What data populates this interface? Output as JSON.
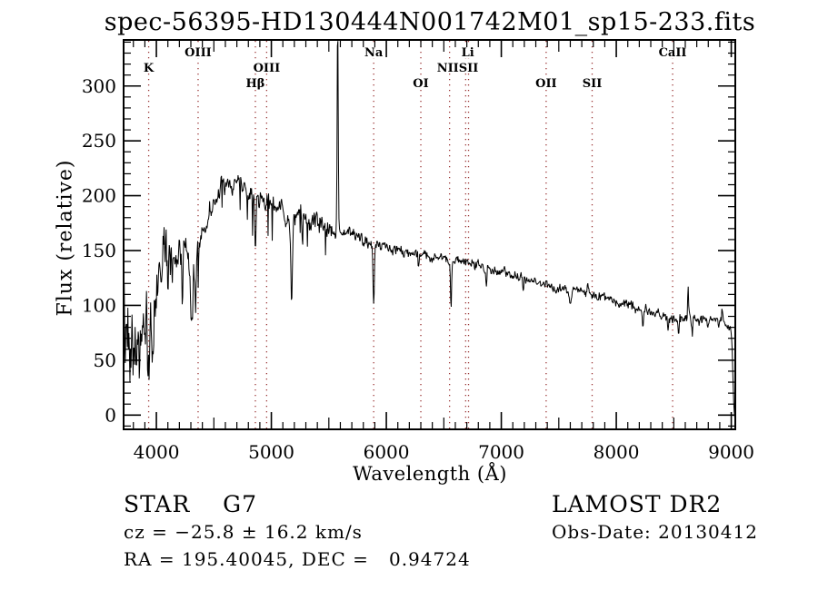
{
  "title": "spec-56395-HD130444N001742M01_sp15-233.fits",
  "annotations": {
    "class_label": "STAR    G7",
    "survey": "LAMOST DR2",
    "cz": "cz = −25.8 ± 16.2 km/s",
    "obs_date": "Obs-Date: 20130412",
    "ra_dec": "RA = 195.40045, DEC =   0.94724"
  },
  "chart_data": {
    "type": "line",
    "title": "spec-56395-HD130444N001742M01_sp15-233.fits",
    "xlabel": "Wavelength (Å)",
    "ylabel": "Flux (relative)",
    "xlim": [
      3715,
      9035
    ],
    "ylim": [
      -13,
      342
    ],
    "xticks_major": [
      4000,
      5000,
      6000,
      7000,
      8000,
      9000
    ],
    "xtick_medium_step": 500,
    "xtick_minor_step": 100,
    "yticks_major": [
      0,
      50,
      100,
      150,
      200,
      250,
      300
    ],
    "ytick_minor_step": 10,
    "grid": false,
    "line_color": "#000000",
    "marker_color": "#993333",
    "line_markers": [
      3933,
      4363,
      4861,
      4959,
      5890,
      6300,
      6550,
      6690,
      6715,
      7390,
      7790,
      8490
    ],
    "line_labels": [
      {
        "text": "K",
        "wavelength": 3933,
        "row": 1
      },
      {
        "text": "OIII",
        "wavelength": 4363,
        "row": 0
      },
      {
        "text": "Hβ",
        "wavelength": 4861,
        "row": 2
      },
      {
        "text": "OIII",
        "wavelength": 4959,
        "row": 1
      },
      {
        "text": "Na",
        "wavelength": 5890,
        "row": 0
      },
      {
        "text": "OI",
        "wavelength": 6300,
        "row": 2
      },
      {
        "text": "NIISII",
        "wavelength": 6620,
        "row": 1
      },
      {
        "text": "Li",
        "wavelength": 6708,
        "row": 0
      },
      {
        "text": "OII",
        "wavelength": 7390,
        "row": 2
      },
      {
        "text": "SII",
        "wavelength": 7790,
        "row": 2
      },
      {
        "text": "CaII",
        "wavelength": 8490,
        "row": 0
      }
    ],
    "seed": 42,
    "sample_step": 4.5,
    "continuum": [
      [
        3715,
        100
      ],
      [
        3730,
        55
      ],
      [
        3760,
        95
      ],
      [
        3800,
        70
      ],
      [
        3840,
        60
      ],
      [
        3880,
        70
      ],
      [
        3920,
        75
      ],
      [
        3950,
        90
      ],
      [
        3980,
        105
      ],
      [
        4010,
        125
      ],
      [
        4050,
        148
      ],
      [
        4090,
        150
      ],
      [
        4120,
        140
      ],
      [
        4160,
        146
      ],
      [
        4200,
        150
      ],
      [
        4240,
        148
      ],
      [
        4280,
        141
      ],
      [
        4320,
        136
      ],
      [
        4360,
        152
      ],
      [
        4400,
        163
      ],
      [
        4440,
        172
      ],
      [
        4480,
        190
      ],
      [
        4520,
        198
      ],
      [
        4560,
        205
      ],
      [
        4600,
        210
      ],
      [
        4650,
        208
      ],
      [
        4700,
        213
      ],
      [
        4750,
        208
      ],
      [
        4800,
        203
      ],
      [
        4840,
        198
      ],
      [
        4880,
        196
      ],
      [
        4920,
        198
      ],
      [
        4960,
        194
      ],
      [
        5000,
        192
      ],
      [
        5050,
        188
      ],
      [
        5100,
        184
      ],
      [
        5150,
        176
      ],
      [
        5200,
        178
      ],
      [
        5250,
        183
      ],
      [
        5300,
        178
      ],
      [
        5350,
        174
      ],
      [
        5400,
        176
      ],
      [
        5450,
        172
      ],
      [
        5500,
        170
      ],
      [
        5560,
        169
      ],
      [
        5620,
        168
      ],
      [
        5700,
        165
      ],
      [
        5780,
        162
      ],
      [
        5860,
        158
      ],
      [
        5940,
        155
      ],
      [
        6020,
        152
      ],
      [
        6100,
        151
      ],
      [
        6180,
        149
      ],
      [
        6260,
        147
      ],
      [
        6340,
        145
      ],
      [
        6420,
        144
      ],
      [
        6500,
        143
      ],
      [
        6580,
        141
      ],
      [
        6660,
        140
      ],
      [
        6740,
        138
      ],
      [
        6820,
        136
      ],
      [
        6900,
        134
      ],
      [
        7000,
        131
      ],
      [
        7100,
        128
      ],
      [
        7200,
        125
      ],
      [
        7300,
        121
      ],
      [
        7400,
        118
      ],
      [
        7500,
        116
      ],
      [
        7600,
        114
      ],
      [
        7700,
        112
      ],
      [
        7800,
        110
      ],
      [
        7900,
        107
      ],
      [
        8000,
        104
      ],
      [
        8100,
        101
      ],
      [
        8200,
        97
      ],
      [
        8300,
        94
      ],
      [
        8400,
        90
      ],
      [
        8500,
        88
      ],
      [
        8600,
        89
      ],
      [
        8700,
        88
      ],
      [
        8800,
        86
      ],
      [
        8900,
        85
      ],
      [
        8960,
        83
      ],
      [
        9000,
        78
      ],
      [
        9010,
        55
      ],
      [
        9020,
        10
      ],
      [
        9030,
        -6
      ],
      [
        9035,
        -8
      ]
    ],
    "noise_regions": [
      [
        3715,
        3790,
        75
      ],
      [
        3790,
        3960,
        42
      ],
      [
        3960,
        4150,
        30
      ],
      [
        4150,
        4480,
        16
      ],
      [
        4480,
        5600,
        11
      ],
      [
        5600,
        6200,
        7
      ],
      [
        6200,
        7000,
        6
      ],
      [
        7000,
        8000,
        5.5
      ],
      [
        8000,
        9035,
        6.5
      ]
    ],
    "features": [
      [
        5577,
        6,
        200
      ],
      [
        3933,
        10,
        -50
      ],
      [
        3968,
        10,
        -40
      ],
      [
        4101,
        6,
        -55
      ],
      [
        4226,
        6,
        -45
      ],
      [
        4305,
        12,
        -58
      ],
      [
        4340,
        7,
        -48
      ],
      [
        4861,
        7,
        -50
      ],
      [
        5175,
        9,
        -75
      ],
      [
        5270,
        6,
        -30
      ],
      [
        5890,
        9,
        -55
      ],
      [
        6280,
        5,
        -15
      ],
      [
        6563,
        7,
        -42
      ],
      [
        6870,
        7,
        -20
      ],
      [
        7190,
        8,
        -12
      ],
      [
        7600,
        10,
        -16
      ],
      [
        7750,
        4,
        12
      ],
      [
        8230,
        8,
        -12
      ],
      [
        8450,
        6,
        -14
      ],
      [
        8542,
        6,
        -15
      ],
      [
        8662,
        6,
        -13
      ],
      [
        8625,
        5,
        30
      ],
      [
        8920,
        5,
        14
      ]
    ],
    "spike_noise": {
      "range": [
        3960,
        5500
      ],
      "prob": 0.045
    }
  }
}
